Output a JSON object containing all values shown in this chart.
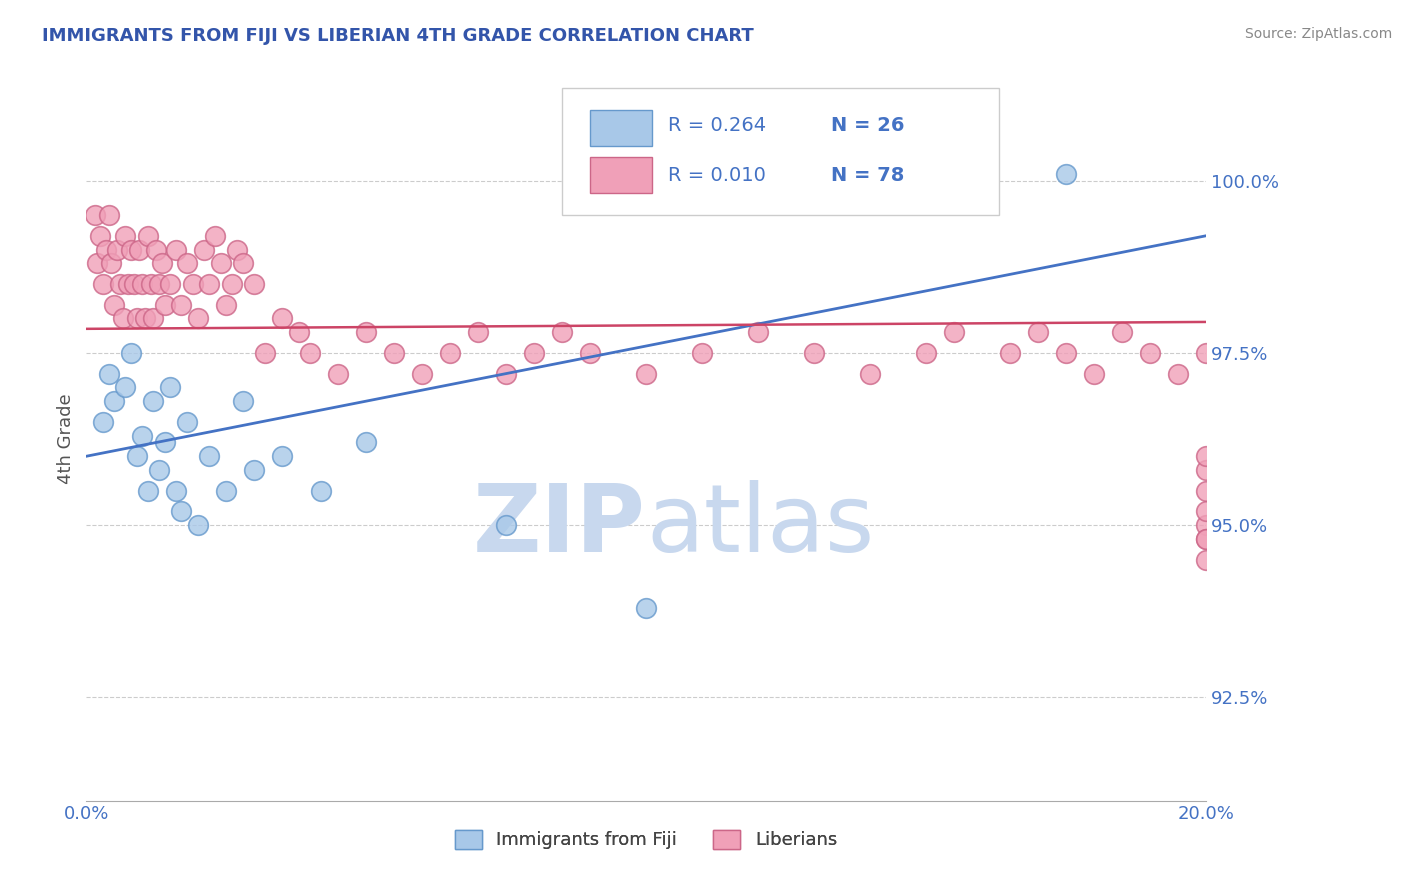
{
  "title": "IMMIGRANTS FROM FIJI VS LIBERIAN 4TH GRADE CORRELATION CHART",
  "source": "Source: ZipAtlas.com",
  "ylabel": "4th Grade",
  "xlim": [
    0.0,
    20.0
  ],
  "ylim": [
    91.0,
    101.5
  ],
  "yticks": [
    92.5,
    95.0,
    97.5,
    100.0
  ],
  "ytick_labels": [
    "92.5%",
    "95.0%",
    "97.5%",
    "100.0%"
  ],
  "legend_fiji_label": "Immigrants from Fiji",
  "legend_lib_label": "Liberians",
  "fiji_color": "#A8C8E8",
  "fiji_edge_color": "#6699CC",
  "liberian_color": "#F0A0B8",
  "liberian_edge_color": "#CC6688",
  "fiji_line_color": "#4472C4",
  "liberian_line_color": "#CC4466",
  "fiji_line_x0": 0.0,
  "fiji_line_x1": 20.0,
  "fiji_line_y0": 96.0,
  "fiji_line_y1": 99.2,
  "lib_line_x0": 0.0,
  "lib_line_x1": 20.0,
  "lib_line_y0": 97.85,
  "lib_line_y1": 97.95,
  "fiji_scatter_x": [
    0.3,
    0.4,
    0.5,
    0.7,
    0.8,
    0.9,
    1.0,
    1.1,
    1.2,
    1.3,
    1.4,
    1.5,
    1.6,
    1.7,
    1.8,
    2.0,
    2.2,
    2.5,
    2.8,
    3.0,
    3.5,
    4.2,
    5.0,
    7.5,
    10.0,
    17.5
  ],
  "fiji_scatter_y": [
    96.5,
    97.2,
    96.8,
    97.0,
    97.5,
    96.0,
    96.3,
    95.5,
    96.8,
    95.8,
    96.2,
    97.0,
    95.5,
    95.2,
    96.5,
    95.0,
    96.0,
    95.5,
    96.8,
    95.8,
    96.0,
    95.5,
    96.2,
    95.0,
    93.8,
    100.1
  ],
  "liberian_scatter_x": [
    0.15,
    0.2,
    0.25,
    0.3,
    0.35,
    0.4,
    0.45,
    0.5,
    0.55,
    0.6,
    0.65,
    0.7,
    0.75,
    0.8,
    0.85,
    0.9,
    0.95,
    1.0,
    1.05,
    1.1,
    1.15,
    1.2,
    1.25,
    1.3,
    1.35,
    1.4,
    1.5,
    1.6,
    1.7,
    1.8,
    1.9,
    2.0,
    2.1,
    2.2,
    2.3,
    2.4,
    2.5,
    2.6,
    2.7,
    2.8,
    3.0,
    3.2,
    3.5,
    3.8,
    4.0,
    4.5,
    5.0,
    5.5,
    6.0,
    6.5,
    7.0,
    7.5,
    8.0,
    8.5,
    9.0,
    10.0,
    11.0,
    12.0,
    13.0,
    14.0,
    15.0,
    15.5,
    16.5,
    17.0,
    17.5,
    18.0,
    18.5,
    19.0,
    19.5,
    20.0,
    20.0,
    20.0,
    20.0,
    20.0,
    20.0,
    20.0,
    20.0,
    20.0
  ],
  "liberian_scatter_y": [
    99.5,
    98.8,
    99.2,
    98.5,
    99.0,
    99.5,
    98.8,
    98.2,
    99.0,
    98.5,
    98.0,
    99.2,
    98.5,
    99.0,
    98.5,
    98.0,
    99.0,
    98.5,
    98.0,
    99.2,
    98.5,
    98.0,
    99.0,
    98.5,
    98.8,
    98.2,
    98.5,
    99.0,
    98.2,
    98.8,
    98.5,
    98.0,
    99.0,
    98.5,
    99.2,
    98.8,
    98.2,
    98.5,
    99.0,
    98.8,
    98.5,
    97.5,
    98.0,
    97.8,
    97.5,
    97.2,
    97.8,
    97.5,
    97.2,
    97.5,
    97.8,
    97.2,
    97.5,
    97.8,
    97.5,
    97.2,
    97.5,
    97.8,
    97.5,
    97.2,
    97.5,
    97.8,
    97.5,
    97.8,
    97.5,
    97.2,
    97.8,
    97.5,
    97.2,
    97.5,
    95.5,
    95.8,
    94.5,
    95.0,
    94.8,
    95.2,
    94.8,
    96.0
  ],
  "background_color": "#FFFFFF",
  "grid_color": "#CCCCCC",
  "watermark_zip": "ZIP",
  "watermark_atlas": "atlas",
  "watermark_color_zip": "#C8D8EE",
  "watermark_color_atlas": "#C8D8EE",
  "title_color": "#3355AA",
  "axis_label_color": "#555555",
  "tick_color": "#4472C4",
  "legend_r_color": "#4472C4",
  "legend_n_color": "#333333"
}
